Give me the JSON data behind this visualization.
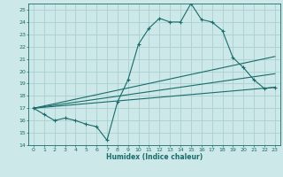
{
  "xlabel": "Humidex (Indice chaleur)",
  "bg_color": "#cce8e8",
  "grid_color": "#aacfcf",
  "line_color": "#1a6b6b",
  "xlim": [
    -0.5,
    23.5
  ],
  "ylim": [
    14,
    25.5
  ],
  "xticks": [
    0,
    1,
    2,
    3,
    4,
    5,
    6,
    7,
    8,
    9,
    10,
    11,
    12,
    13,
    14,
    15,
    16,
    17,
    18,
    19,
    20,
    21,
    22,
    23
  ],
  "yticks": [
    14,
    15,
    16,
    17,
    18,
    19,
    20,
    21,
    22,
    23,
    24,
    25
  ],
  "main_x": [
    0,
    1,
    2,
    3,
    4,
    5,
    6,
    7,
    8,
    9,
    10,
    11,
    12,
    13,
    14,
    15,
    16,
    17,
    18,
    19,
    20,
    21,
    22,
    23
  ],
  "main_y": [
    17.0,
    16.5,
    16.0,
    16.2,
    16.0,
    15.7,
    15.5,
    14.4,
    17.5,
    19.3,
    22.2,
    23.5,
    24.3,
    24.0,
    24.0,
    25.5,
    24.2,
    24.0,
    23.3,
    21.1,
    20.3,
    19.3,
    18.6,
    18.7
  ],
  "line1_x": [
    0,
    23
  ],
  "line1_y": [
    17.0,
    18.7
  ],
  "line2_x": [
    0,
    23
  ],
  "line2_y": [
    17.0,
    19.8
  ],
  "line3_x": [
    0,
    23
  ],
  "line3_y": [
    17.0,
    21.2
  ]
}
